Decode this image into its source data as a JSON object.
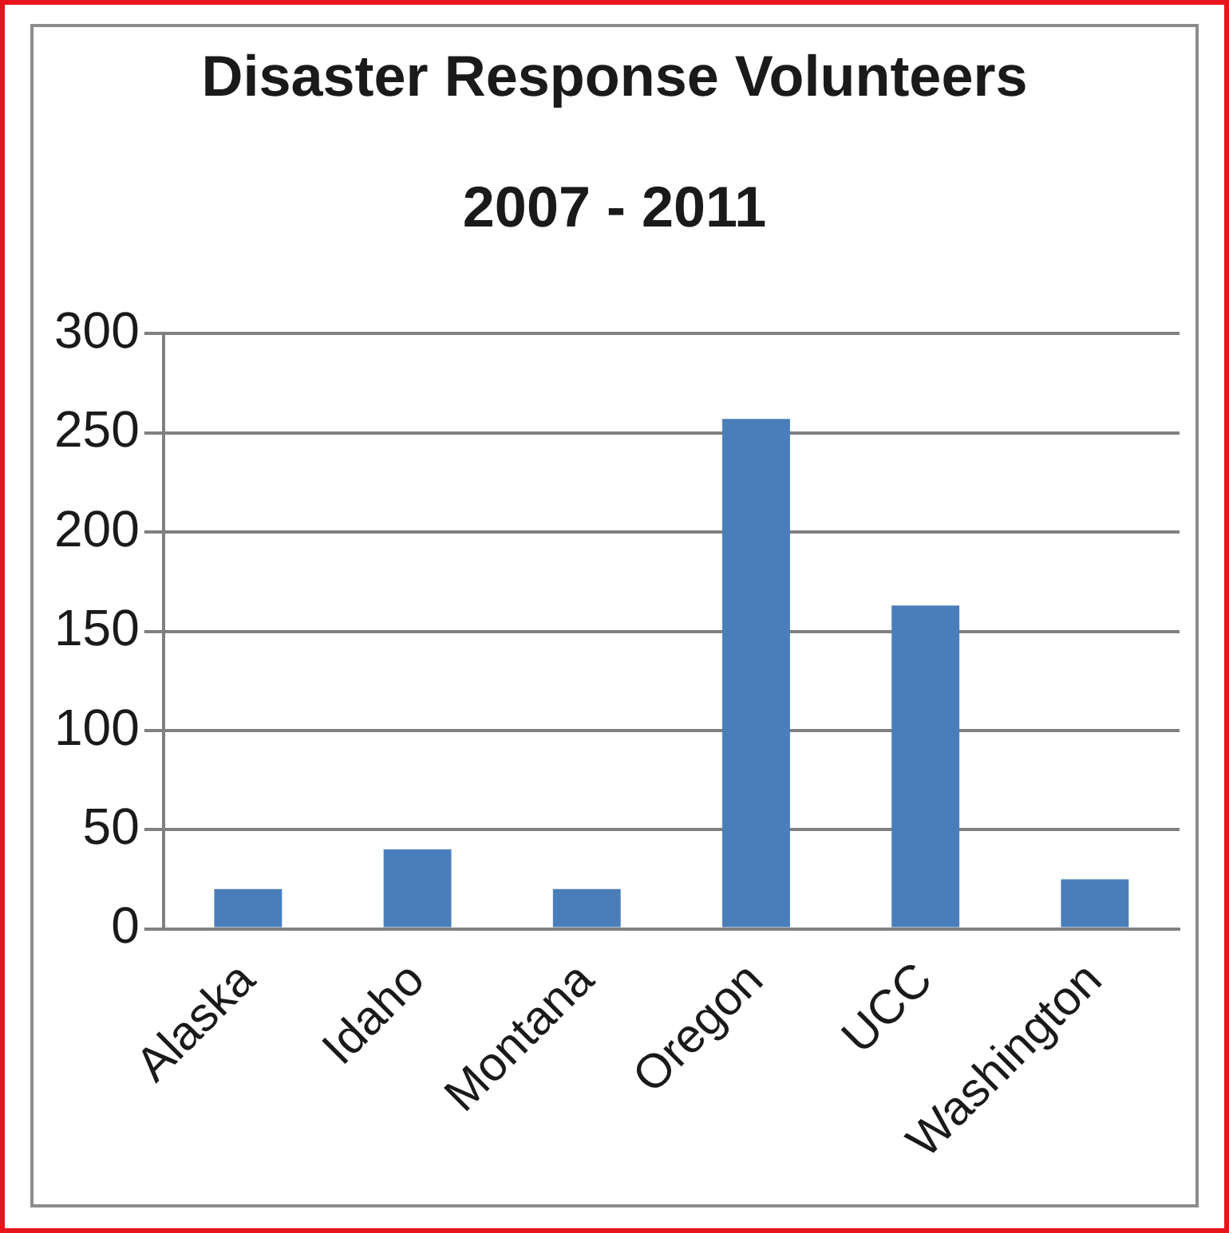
{
  "chart_data": {
    "type": "bar",
    "title": "Disaster Response Volunteers",
    "subtitle": "2007 - 2011",
    "categories": [
      "Alaska",
      "Idaho",
      "Montana",
      "Oregon",
      "UCC",
      "Washington"
    ],
    "values": [
      20,
      40,
      20,
      257,
      163,
      25
    ],
    "color": "#4a7ebb",
    "ylim": [
      0,
      300
    ],
    "yticks": [
      0,
      50,
      100,
      150,
      200,
      250,
      300
    ],
    "grid": "y",
    "legend": false
  }
}
